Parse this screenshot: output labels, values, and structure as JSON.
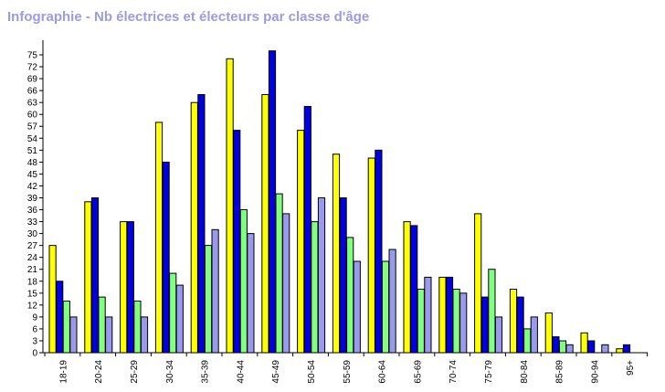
{
  "chart_data": {
    "type": "bar",
    "title": "Infographie - Nb électrices et électeurs par classe d'âge",
    "categories": [
      "18-19",
      "20-24",
      "25-29",
      "30-34",
      "35-39",
      "40-44",
      "45-49",
      "50-54",
      "55-59",
      "60-64",
      "65-69",
      "70-74",
      "75-79",
      "80-84",
      "85-89",
      "90-94",
      "95+"
    ],
    "series": [
      {
        "color": "#ffff00",
        "values": [
          27,
          38,
          33,
          58,
          63,
          74,
          65,
          56,
          50,
          49,
          33,
          19,
          35,
          16,
          10,
          5,
          1
        ]
      },
      {
        "color": "#0000e0",
        "values": [
          18,
          39,
          33,
          48,
          65,
          56,
          76,
          62,
          39,
          51,
          32,
          19,
          14,
          14,
          4,
          3,
          2
        ]
      },
      {
        "color": "#80ff80",
        "values": [
          13,
          14,
          13,
          20,
          27,
          36,
          40,
          33,
          29,
          23,
          16,
          16,
          21,
          6,
          3,
          0,
          0
        ]
      },
      {
        "color": "#9999ee",
        "values": [
          9,
          9,
          9,
          17,
          31,
          30,
          35,
          39,
          23,
          26,
          19,
          15,
          9,
          9,
          2,
          2,
          0
        ]
      }
    ],
    "yticks": [
      0,
      3,
      6,
      9,
      12,
      15,
      18,
      21,
      24,
      27,
      30,
      33,
      36,
      39,
      42,
      45,
      48,
      51,
      54,
      57,
      60,
      63,
      66,
      69,
      72,
      75
    ],
    "ylim": [
      0,
      77
    ],
    "grid": false,
    "legend": "none"
  }
}
